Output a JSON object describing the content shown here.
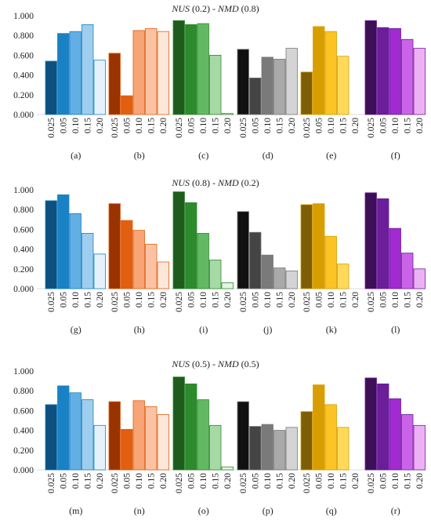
{
  "figure": {
    "colors": {
      "blue": [
        "#0d4f7f",
        "#1a82c4",
        "#63aee3",
        "#9fcdee",
        "#e6f2fb"
      ],
      "orange": [
        "#993300",
        "#e15f10",
        "#f7a476",
        "#fbc3a3",
        "#fde7da"
      ],
      "green": [
        "#1e5c1e",
        "#2d8a2d",
        "#63b963",
        "#a6d9a6",
        "#e4f5e4"
      ],
      "gray": [
        "#111111",
        "#444444",
        "#7a7a7a",
        "#a9a9a9",
        "#d4d4d4"
      ],
      "gold": [
        "#7d5e05",
        "#d89e00",
        "#fbc424",
        "#ffd95a",
        "#fff2c2"
      ],
      "purple": [
        "#3c0f56",
        "#6a1e99",
        "#a12ad1",
        "#cb63e8",
        "#eeb0f5"
      ],
      "outline": {
        "blue": "#1a82c4",
        "orange": "#e15f10",
        "green": "#2d8a2d",
        "gray": "#777777",
        "gold": "#d89e00",
        "purple": "#6a1e99"
      }
    },
    "yticks": [
      "0.000",
      "0.200",
      "0.400",
      "0.600",
      "0.800",
      "1.000"
    ],
    "categories": [
      "0.025",
      "0.05",
      "0.10",
      "0.15",
      "0.20"
    ],
    "panel_colors": [
      "blue",
      "orange",
      "green",
      "gray",
      "gold",
      "purple"
    ],
    "rows": [
      {
        "title_a": "NUS",
        "title_a_val": " (0.2) - ",
        "title_b": "NMD",
        "title_b_val": " (0.8)",
        "labels": [
          "(a)",
          "(b)",
          "(c)",
          "(d)",
          "(e)",
          "(f)"
        ]
      },
      {
        "title_a": "NUS",
        "title_a_val": " (0.8) - ",
        "title_b": "NMD",
        "title_b_val": " (0.2)",
        "labels": [
          "(g)",
          "(h)",
          "(i)",
          "(j)",
          "(k)",
          "(l)"
        ]
      },
      {
        "title_a": "NUS",
        "title_a_val": " (0.5) - ",
        "title_b": "NMD",
        "title_b_val": " (0.5)",
        "labels": [
          "(m)",
          "(n)",
          "(o)",
          "(p)",
          "(q)",
          "(r)"
        ]
      }
    ]
  },
  "chart_data": [
    {
      "type": "bar",
      "title": "NUS (0.2) - NMD (0.8)",
      "categories": [
        "0.025",
        "0.05",
        "0.10",
        "0.15",
        "0.20"
      ],
      "ylim": [
        0,
        1
      ],
      "panels": [
        {
          "label": "(a)",
          "values": [
            0.54,
            0.82,
            0.84,
            0.91,
            0.55
          ]
        },
        {
          "label": "(b)",
          "values": [
            0.62,
            0.19,
            0.85,
            0.87,
            0.84
          ]
        },
        {
          "label": "(c)",
          "values": [
            0.95,
            0.91,
            0.92,
            0.6,
            0.01
          ]
        },
        {
          "label": "(d)",
          "values": [
            0.66,
            0.37,
            0.58,
            0.56,
            0.67
          ]
        },
        {
          "label": "(e)",
          "values": [
            0.43,
            0.89,
            0.84,
            0.59,
            0.0
          ]
        },
        {
          "label": "(f)",
          "values": [
            0.95,
            0.88,
            0.87,
            0.76,
            0.67
          ]
        }
      ]
    },
    {
      "type": "bar",
      "title": "NUS (0.8) - NMD (0.2)",
      "categories": [
        "0.025",
        "0.05",
        "0.10",
        "0.15",
        "0.20"
      ],
      "ylim": [
        0,
        1
      ],
      "panels": [
        {
          "label": "(g)",
          "values": [
            0.89,
            0.95,
            0.76,
            0.56,
            0.35
          ]
        },
        {
          "label": "(h)",
          "values": [
            0.86,
            0.69,
            0.59,
            0.45,
            0.27
          ]
        },
        {
          "label": "(i)",
          "values": [
            0.98,
            0.87,
            0.56,
            0.29,
            0.06
          ]
        },
        {
          "label": "(j)",
          "values": [
            0.78,
            0.57,
            0.34,
            0.21,
            0.18
          ]
        },
        {
          "label": "(k)",
          "values": [
            0.85,
            0.86,
            0.53,
            0.25,
            0.0
          ]
        },
        {
          "label": "(l)",
          "values": [
            0.97,
            0.91,
            0.61,
            0.36,
            0.2
          ]
        }
      ]
    },
    {
      "type": "bar",
      "title": "NUS (0.5) - NMD (0.5)",
      "categories": [
        "0.025",
        "0.05",
        "0.10",
        "0.15",
        "0.20"
      ],
      "ylim": [
        0,
        1
      ],
      "panels": [
        {
          "label": "(m)",
          "values": [
            0.66,
            0.85,
            0.78,
            0.71,
            0.45
          ]
        },
        {
          "label": "(n)",
          "values": [
            0.69,
            0.41,
            0.7,
            0.64,
            0.56
          ]
        },
        {
          "label": "(o)",
          "values": [
            0.94,
            0.87,
            0.71,
            0.45,
            0.03
          ]
        },
        {
          "label": "(p)",
          "values": [
            0.69,
            0.44,
            0.46,
            0.4,
            0.43
          ]
        },
        {
          "label": "(q)",
          "values": [
            0.59,
            0.86,
            0.66,
            0.43,
            0.0
          ]
        },
        {
          "label": "(r)",
          "values": [
            0.93,
            0.87,
            0.72,
            0.56,
            0.45
          ]
        }
      ]
    }
  ]
}
